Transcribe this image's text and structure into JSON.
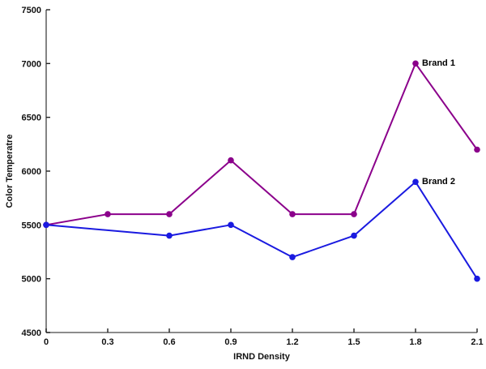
{
  "chart_data": {
    "type": "line",
    "title": "",
    "xlabel": "IRND Density",
    "ylabel": "Color Temperatre",
    "xlim": [
      0,
      2.1
    ],
    "ylim": [
      4500,
      7500
    ],
    "grid": false,
    "legend": "inline-labels-at-points",
    "x_ticks": [
      0,
      0.3,
      0.6,
      0.9,
      1.2,
      1.5,
      1.8,
      2.1
    ],
    "x_tick_labels": [
      "0",
      "0.3",
      "0.6",
      "0.9",
      "1.2",
      "1.5",
      "1.8",
      "2.1"
    ],
    "y_ticks": [
      4500,
      5000,
      5500,
      6000,
      6500,
      7000,
      7500
    ],
    "y_tick_labels": [
      "4500",
      "5000",
      "5500",
      "6000",
      "6500",
      "7000",
      "7500"
    ],
    "series": [
      {
        "name": "Brand 1",
        "color": "#8b008b",
        "x": [
          0,
          0.3,
          0.6,
          0.9,
          1.2,
          1.5,
          1.8,
          2.1
        ],
        "values": [
          5500,
          5600,
          5600,
          6100,
          5600,
          5600,
          7000,
          6200
        ],
        "label_at": {
          "x": 1.8,
          "y": 7000
        }
      },
      {
        "name": "Brand 2",
        "color": "#1a1ae0",
        "x": [
          0,
          0.6,
          0.9,
          1.2,
          1.5,
          1.8,
          2.1
        ],
        "values": [
          5500,
          5400,
          5500,
          5200,
          5400,
          5900,
          5000
        ],
        "label_at": {
          "x": 1.8,
          "y": 5900
        }
      }
    ]
  },
  "colors": {
    "background": "#ffffff",
    "axis": "#666666",
    "tick": "#222222",
    "label_text": "#111111",
    "series_brand1": "#8b008b",
    "series_brand2": "#1a1ae0"
  }
}
